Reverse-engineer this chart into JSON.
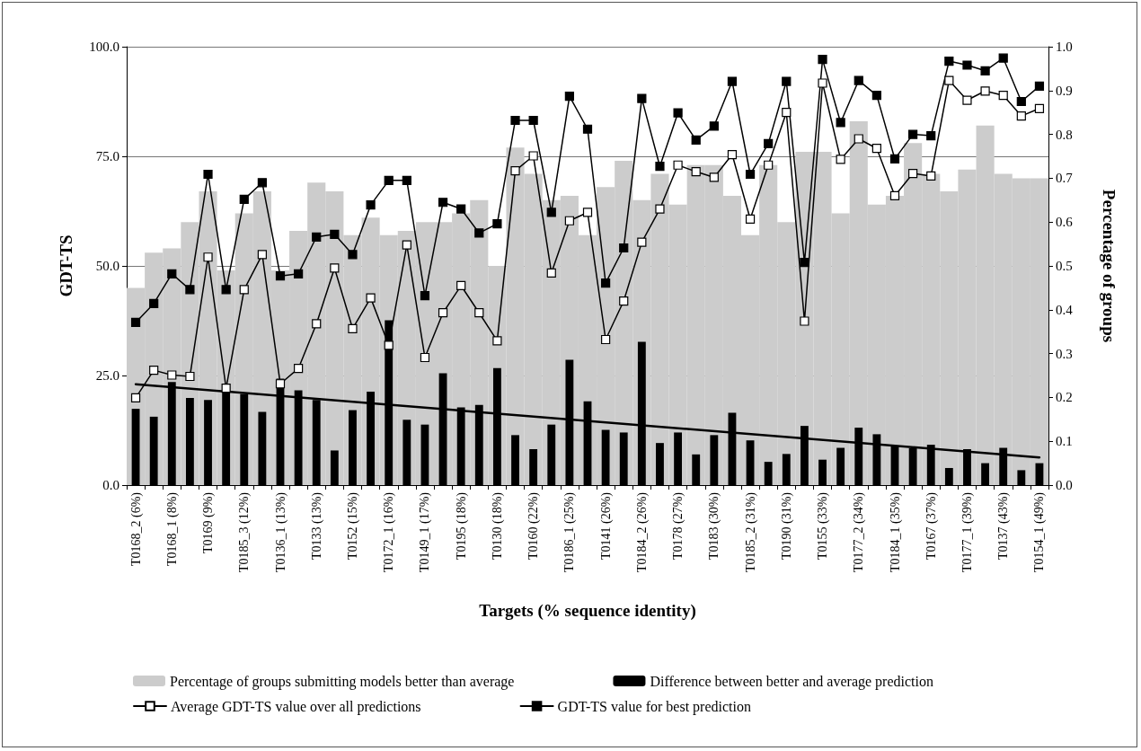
{
  "chart_data": {
    "type": "line",
    "xlabel": "Targets (% sequence identity)",
    "ylabel": "GDT-TS",
    "y2label": "Percentage of groups",
    "categories": [
      "T0168_2 (6%)",
      null,
      "T0168_1 (8%)",
      null,
      "T0169 (9%)",
      null,
      "T0185_3 (12%)",
      null,
      "T0136_1 (13%)",
      null,
      "T0133 (13%)",
      null,
      "T0152 (15%)",
      null,
      "T0172_1 (16%)",
      null,
      "T0149_1 (17%)",
      null,
      "T0195 (18%)",
      null,
      "T0130 (18%)",
      null,
      "T0160 (22%)",
      null,
      "T0186_1 (25%)",
      null,
      "T0141 (26%)",
      null,
      "T0184_2 (26%)",
      null,
      "T0178 (27%)",
      null,
      "T0183 (30%)",
      null,
      "T0185_2 (31%)",
      null,
      "T0190 (31%)",
      null,
      "T0155 (33%)",
      null,
      "T0177_2 (34%)",
      null,
      "T0184_1 (35%)",
      null,
      "T0167 (37%)",
      null,
      "T0177_1 (39%)",
      null,
      "T0137 (43%)",
      null,
      "T0154_1 (49%)"
    ],
    "series": [
      {
        "name": "Percentage of groups submitting models better than average",
        "type": "bar",
        "axis": "y2",
        "color": "#cccccc",
        "values": [
          0.45,
          0.53,
          0.54,
          0.6,
          0.67,
          0.49,
          0.62,
          0.67,
          0.49,
          0.58,
          0.69,
          0.67,
          0.57,
          0.61,
          0.57,
          0.58,
          0.6,
          0.6,
          0.62,
          0.65,
          0.5,
          0.77,
          0.71,
          0.65,
          0.66,
          0.57,
          0.68,
          0.74,
          0.65,
          0.71,
          0.64,
          0.73,
          0.73,
          0.66,
          0.57,
          0.73,
          0.6,
          0.76,
          0.76,
          0.62,
          0.83,
          0.64,
          0.66,
          0.78,
          0.71,
          0.67,
          0.72,
          0.82,
          0.71,
          0.7,
          0.7
        ]
      },
      {
        "name": "Difference between better and average prediction",
        "type": "bar",
        "color": "#000000",
        "values": [
          17.4,
          15.6,
          23.5,
          19.9,
          19.4,
          22.6,
          20.8,
          16.7,
          24.3,
          21.6,
          19.4,
          7.9,
          17.1,
          21.3,
          37.6,
          14.9,
          13.8,
          25.5,
          17.7,
          18.3,
          26.7,
          11.4,
          8.2,
          13.8,
          28.6,
          19.1,
          12.6,
          12.0,
          32.7,
          9.6,
          12.0,
          7.0,
          11.4,
          16.5,
          10.2,
          5.3,
          7.1,
          13.5,
          5.8,
          8.5,
          13.1,
          11.6,
          8.9,
          8.4,
          9.2,
          3.9,
          8.2,
          5.0,
          8.5,
          3.4,
          5.0
        ]
      },
      {
        "name": "Average GDT-TS value over all predictions",
        "marker": "square",
        "color": "#ffffff",
        "values": [
          19.9,
          26.2,
          25.1,
          24.8,
          52.0,
          22.1,
          44.6,
          52.6,
          23.1,
          26.6,
          36.8,
          49.5,
          35.7,
          42.7,
          31.9,
          54.8,
          29.1,
          39.3,
          45.5,
          39.3,
          32.9,
          71.7,
          75.1,
          48.4,
          60.3,
          62.2,
          33.2,
          42.0,
          55.4,
          63.0,
          73.0,
          71.5,
          70.2,
          75.4,
          60.7,
          73.0,
          85.0,
          37.4,
          91.7,
          74.3,
          79.0,
          76.8,
          66.0,
          71.1,
          70.5,
          92.3,
          87.8,
          89.9,
          88.9,
          84.2,
          85.9
        ]
      },
      {
        "name": "GDT-TS value for best prediction",
        "marker": "square",
        "color": "#000000",
        "values": [
          37.1,
          41.4,
          48.2,
          44.6,
          70.9,
          44.6,
          65.2,
          69.0,
          47.7,
          48.2,
          56.6,
          57.2,
          52.6,
          63.9,
          69.5,
          69.5,
          43.2,
          64.5,
          63.0,
          57.5,
          59.6,
          83.2,
          83.2,
          62.2,
          88.7,
          81.2,
          46.1,
          54.1,
          88.2,
          72.7,
          84.9,
          78.7,
          81.9,
          92.1,
          70.9,
          77.9,
          92.1,
          50.8,
          97.1,
          82.7,
          92.3,
          88.9,
          74.4,
          80.0,
          79.7,
          96.7,
          95.8,
          94.5,
          97.4,
          87.5,
          91.0
        ]
      },
      {
        "marker": "none",
        "color": "#000000",
        "x": [
          "T0168_2 (6%)",
          "T0154_1 (49%)"
        ],
        "values": [
          23.0,
          6.3
        ]
      }
    ],
    "ylim": [
      0,
      100
    ],
    "yticks": [
      {
        "value": 0,
        "label": "0.0"
      },
      {
        "value": 25,
        "label": "25.0"
      },
      {
        "value": 50,
        "label": "50.0"
      },
      {
        "value": 75,
        "label": "75.0"
      },
      {
        "value": 100,
        "label": "100.0"
      }
    ],
    "y2lim": [
      0,
      1
    ],
    "y2ticks": [
      {
        "value": 0,
        "label": "0.0"
      },
      {
        "value": 0.1,
        "label": "0.1"
      },
      {
        "value": 0.2,
        "label": "0.2"
      },
      {
        "value": 0.3,
        "label": "0.3"
      },
      {
        "value": 0.4,
        "label": "0.4"
      },
      {
        "value": 0.5,
        "label": "0.5"
      },
      {
        "value": 0.6,
        "label": "0.6"
      },
      {
        "value": 0.7,
        "label": "0.7"
      },
      {
        "value": 0.8,
        "label": "0.8"
      },
      {
        "value": 0.9,
        "label": "0.9"
      },
      {
        "value": 1,
        "label": "1.0"
      }
    ],
    "grid": "y",
    "legend": "bottom"
  }
}
